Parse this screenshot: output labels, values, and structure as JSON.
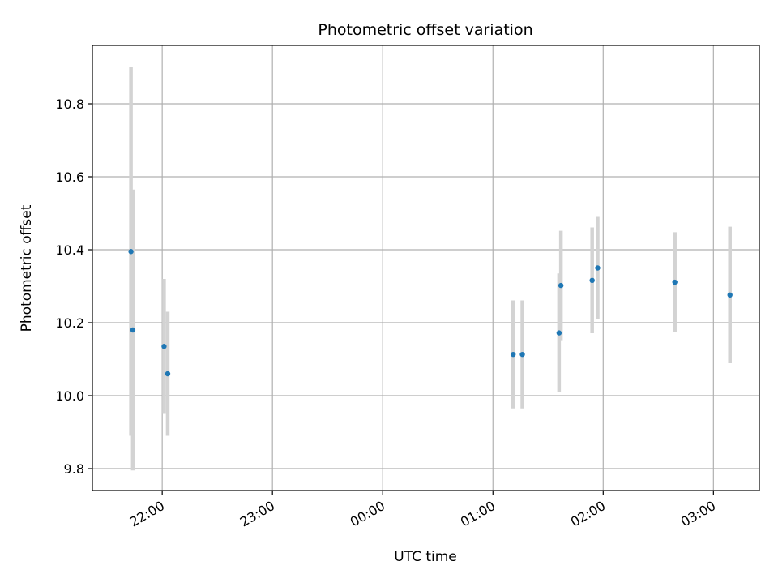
{
  "chart_data": {
    "type": "scatter",
    "title": "Photometric offset variation",
    "xlabel": "UTC time",
    "ylabel": "Photometric offset",
    "x_axis_type": "time",
    "xlim": [
      "21:22",
      "03:25"
    ],
    "ylim": [
      9.74,
      10.96
    ],
    "xticks": [
      "22:00",
      "23:00",
      "00:00",
      "01:00",
      "02:00",
      "03:00"
    ],
    "yticks": [
      "9.8",
      "10.0",
      "10.2",
      "10.4",
      "10.6",
      "10.8"
    ],
    "ytick_values": [
      9.8,
      10.0,
      10.2,
      10.4,
      10.6,
      10.8
    ],
    "grid": true,
    "point_color": "#1f77b4",
    "errorbar_color": "#d3d3d3",
    "points": [
      {
        "time": "21:43",
        "y": 10.395,
        "err": 0.505
      },
      {
        "time": "21:44",
        "y": 10.18,
        "err": 0.385
      },
      {
        "time": "22:01",
        "y": 10.135,
        "err": 0.185
      },
      {
        "time": "22:03",
        "y": 10.06,
        "err": 0.17
      },
      {
        "time": "01:11",
        "y": 10.113,
        "err": 0.148
      },
      {
        "time": "01:16",
        "y": 10.113,
        "err": 0.148
      },
      {
        "time": "01:36",
        "y": 10.172,
        "err": 0.163
      },
      {
        "time": "01:37",
        "y": 10.302,
        "err": 0.15
      },
      {
        "time": "01:54",
        "y": 10.316,
        "err": 0.145
      },
      {
        "time": "01:57",
        "y": 10.35,
        "err": 0.14
      },
      {
        "time": "02:39",
        "y": 10.311,
        "err": 0.137
      },
      {
        "time": "03:09",
        "y": 10.276,
        "err": 0.187
      }
    ]
  }
}
